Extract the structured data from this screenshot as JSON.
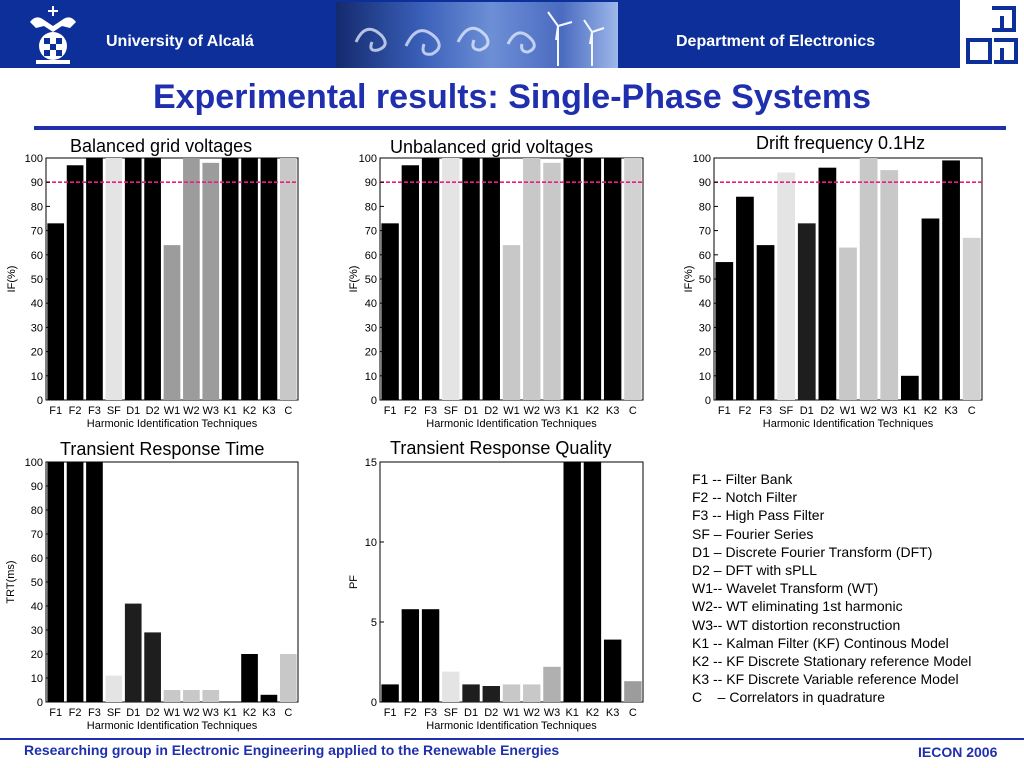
{
  "header": {
    "university": "University of Alcalá",
    "department": "Department of Electronics"
  },
  "title": "Experimental results: Single-Phase Systems",
  "colors": {
    "header_bg": "#0d2f9a",
    "title": "#1f2fae",
    "reference_line": "#e8207a",
    "bar_black": "#000000",
    "bar_dark": "#1e1e1e",
    "bar_mid": "#9c9c9c",
    "bar_light": "#c8c8c8",
    "bar_pale": "#e4e4e4"
  },
  "chart_data": [
    {
      "type": "bar",
      "title": "Balanced grid voltages",
      "xlabel": "Harmonic Identification Techniques",
      "ylabel": "IF(%)",
      "ylim": [
        0,
        100
      ],
      "yticks": [
        0,
        10,
        20,
        30,
        40,
        50,
        60,
        70,
        80,
        90,
        100
      ],
      "categories": [
        "F1",
        "F2",
        "F3",
        "SF",
        "D1",
        "D2",
        "W1",
        "W2",
        "W3",
        "K1",
        "K2",
        "K3",
        "C"
      ],
      "values": [
        73,
        97,
        100,
        100,
        100,
        100,
        64,
        100,
        98,
        100,
        100,
        100,
        100
      ],
      "reference_line": 90,
      "bar_colors": [
        "#000000",
        "#000000",
        "#000000",
        "#e4e4e4",
        "#000000",
        "#000000",
        "#9c9c9c",
        "#9c9c9c",
        "#9c9c9c",
        "#000000",
        "#000000",
        "#000000",
        "#c8c8c8"
      ]
    },
    {
      "type": "bar",
      "title": "Unbalanced grid voltages",
      "xlabel": "Harmonic Identification Techniques",
      "ylabel": "IF(%)",
      "ylim": [
        0,
        100
      ],
      "yticks": [
        0,
        10,
        20,
        30,
        40,
        50,
        60,
        70,
        80,
        90,
        100
      ],
      "categories": [
        "F1",
        "F2",
        "F3",
        "SF",
        "D1",
        "D2",
        "W1",
        "W2",
        "W3",
        "K1",
        "K2",
        "K3",
        "C"
      ],
      "values": [
        73,
        97,
        100,
        100,
        100,
        100,
        64,
        100,
        98,
        100,
        100,
        100,
        100
      ],
      "reference_line": 90,
      "bar_colors": [
        "#000000",
        "#000000",
        "#000000",
        "#e4e4e4",
        "#000000",
        "#000000",
        "#c8c8c8",
        "#c8c8c8",
        "#c8c8c8",
        "#000000",
        "#000000",
        "#000000",
        "#d2d2d2"
      ]
    },
    {
      "type": "bar",
      "title": "Drift frequency 0.1Hz",
      "xlabel": "Harmonic Identification Techniques",
      "ylabel": "IF(%)",
      "ylim": [
        0,
        100
      ],
      "yticks": [
        0,
        10,
        20,
        30,
        40,
        50,
        60,
        70,
        80,
        90,
        100
      ],
      "categories": [
        "F1",
        "F2",
        "F3",
        "SF",
        "D1",
        "D2",
        "W1",
        "W2",
        "W3",
        "K1",
        "K2",
        "K3",
        "C"
      ],
      "values": [
        57,
        84,
        64,
        94,
        73,
        96,
        63,
        100,
        95,
        10,
        75,
        99,
        67
      ],
      "reference_line": 90,
      "bar_colors": [
        "#000000",
        "#000000",
        "#000000",
        "#e4e4e4",
        "#1e1e1e",
        "#000000",
        "#c8c8c8",
        "#c8c8c8",
        "#c8c8c8",
        "#000000",
        "#000000",
        "#000000",
        "#d2d2d2"
      ]
    },
    {
      "type": "bar",
      "title": "Transient Response Time",
      "xlabel": "Harmonic Identification Techniques",
      "ylabel": "TRT(ms)",
      "ylim": [
        0,
        100
      ],
      "yticks": [
        0,
        10,
        20,
        30,
        40,
        50,
        60,
        70,
        80,
        90,
        100
      ],
      "categories": [
        "F1",
        "F2",
        "F3",
        "SF",
        "D1",
        "D2",
        "W1",
        "W2",
        "W3",
        "K1",
        "K2",
        "K3",
        "C"
      ],
      "values": [
        100,
        100,
        100,
        11,
        41,
        29,
        5,
        5,
        5,
        0,
        20,
        3,
        20
      ],
      "bar_colors": [
        "#000000",
        "#000000",
        "#000000",
        "#e4e4e4",
        "#1e1e1e",
        "#1e1e1e",
        "#c8c8c8",
        "#c8c8c8",
        "#c8c8c8",
        "#000000",
        "#000000",
        "#000000",
        "#c8c8c8"
      ]
    },
    {
      "type": "bar",
      "title": "Transient Response Quality",
      "xlabel": "Harmonic Identification Techniques",
      "ylabel": "PF",
      "ylim": [
        0,
        15
      ],
      "yticks": [
        0,
        5,
        10,
        15
      ],
      "categories": [
        "F1",
        "F2",
        "F3",
        "SF",
        "D1",
        "D2",
        "W1",
        "W2",
        "W3",
        "K1",
        "K2",
        "K3",
        "C"
      ],
      "values": [
        1.1,
        5.8,
        5.8,
        1.9,
        1.1,
        1.0,
        1.1,
        1.1,
        2.2,
        15,
        15,
        3.9,
        1.3
      ],
      "bar_colors": [
        "#000000",
        "#000000",
        "#000000",
        "#e4e4e4",
        "#1e1e1e",
        "#1e1e1e",
        "#c8c8c8",
        "#c8c8c8",
        "#b0b0b0",
        "#000000",
        "#000000",
        "#000000",
        "#9c9c9c"
      ]
    }
  ],
  "legend": [
    "F1 -- Filter Bank",
    "F2 -- Notch Filter",
    "F3 -- High Pass Filter",
    "SF – Fourier Series",
    "D1 – Discrete Fourier Transform (DFT)",
    "D2 – DFT with sPLL",
    "W1-- Wavelet Transform (WT)",
    "W2-- WT eliminating 1st harmonic",
    "W3-- WT distortion reconstruction",
    "K1 -- Kalman Filter (KF) Continous Model",
    "K2 -- KF Discrete Stationary reference Model",
    "K3 -- KF Discrete Variable reference Model",
    "C    – Correlators in quadrature"
  ],
  "footer": {
    "left": "Researching group in Electronic Engineering applied to the Renewable Energies",
    "right": "IECON 2006"
  }
}
